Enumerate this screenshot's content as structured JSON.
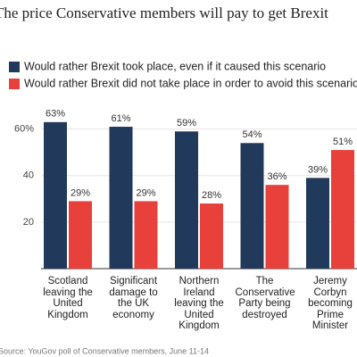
{
  "chart_data": {
    "type": "bar",
    "title": "The price Conservative members will pay to get Brexit",
    "categories": [
      "Scotland leaving the United Kingdom",
      "Significant damage to the UK economy",
      "Northern Ireland leaving the United Kingdom",
      "The Conservative Party being destroyed",
      "Jeremy Corbyn becoming Prime Minister"
    ],
    "series": [
      {
        "name": "Would rather Brexit took place, even if it caused this scenario",
        "color": "#213a5c",
        "values": [
          63,
          61,
          59,
          54,
          39
        ],
        "value_labels": [
          "63%",
          "61%",
          "59%",
          "54%",
          "39%"
        ]
      },
      {
        "name": "Would rather Brexit did not take place in order to avoid this scenario",
        "color": "#e8403a",
        "values": [
          29,
          29,
          28,
          36,
          51
        ],
        "value_labels": [
          "29%",
          "29%",
          "28%",
          "36%",
          "51%"
        ]
      }
    ],
    "ylim": [
      0,
      66
    ],
    "yticks": [
      20,
      40,
      {
        "value": 60,
        "label": "60%"
      }
    ],
    "grid": true,
    "source": "Source: YouGov poll of Conservative members, June 11-14"
  }
}
